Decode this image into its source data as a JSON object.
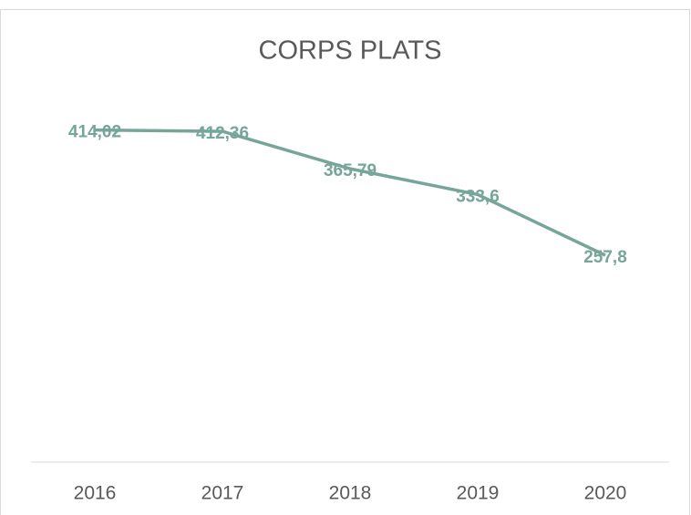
{
  "chart_data": {
    "type": "line",
    "title": "CORPS PLATS",
    "categories": [
      "2016",
      "2017",
      "2018",
      "2019",
      "2020"
    ],
    "values": [
      414.02,
      412.36,
      365.79,
      333.6,
      257.8
    ],
    "value_labels": [
      "414,02",
      "412,36",
      "365,79",
      "333,6",
      "257,8"
    ],
    "color": "#76a59a",
    "ylim": [
      0,
      450
    ]
  }
}
